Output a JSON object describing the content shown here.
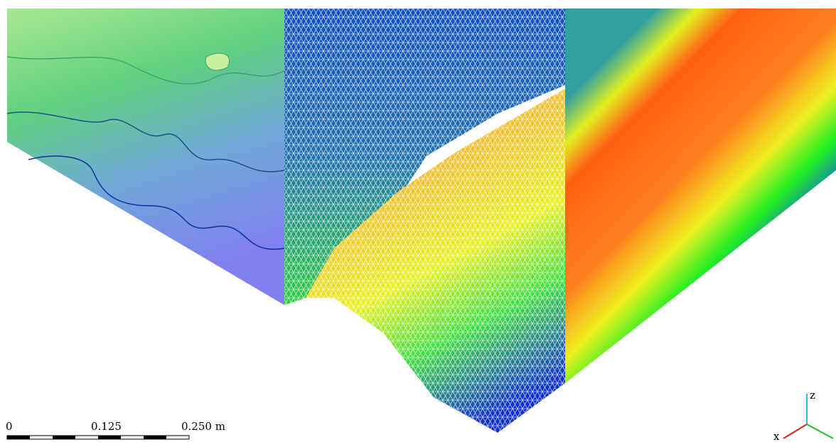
{
  "scale_bar": {
    "labels": [
      "0",
      "0.125",
      "0.250 m"
    ]
  },
  "axes": {
    "labels": [
      "z",
      "x"
    ]
  }
}
